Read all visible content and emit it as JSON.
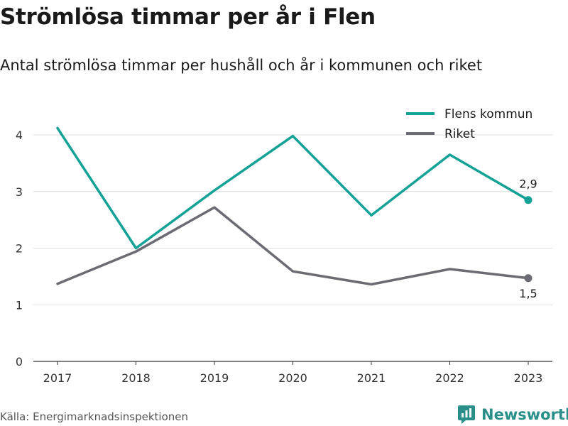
{
  "title": "Strömlösa timmar per år i Flen",
  "subtitle": "Antal strömlösa timmar per hushåll och år i kommunen och riket",
  "source": "Källa: Energimarknadsinspektionen",
  "brand": {
    "name": "Newsworthy",
    "icon": "newsworthy-logo-icon",
    "color": "#2b8f89"
  },
  "chart_data": {
    "type": "line",
    "x": [
      "2017",
      "2018",
      "2019",
      "2020",
      "2021",
      "2022",
      "2023"
    ],
    "ylim": [
      0,
      4.25
    ],
    "yticks": [
      0,
      1,
      2,
      3,
      4
    ],
    "grid": true,
    "legend": "top-right",
    "series": [
      {
        "name": "Flens kommun",
        "color": "#14a196",
        "values": [
          4.12,
          2.0,
          3.02,
          3.98,
          2.58,
          3.65,
          2.85
        ],
        "end_label": "2,9"
      },
      {
        "name": "Riket",
        "color": "#6b6b73",
        "values": [
          1.37,
          1.94,
          2.72,
          1.59,
          1.36,
          1.63,
          1.47
        ],
        "end_label": "1,5"
      }
    ]
  }
}
